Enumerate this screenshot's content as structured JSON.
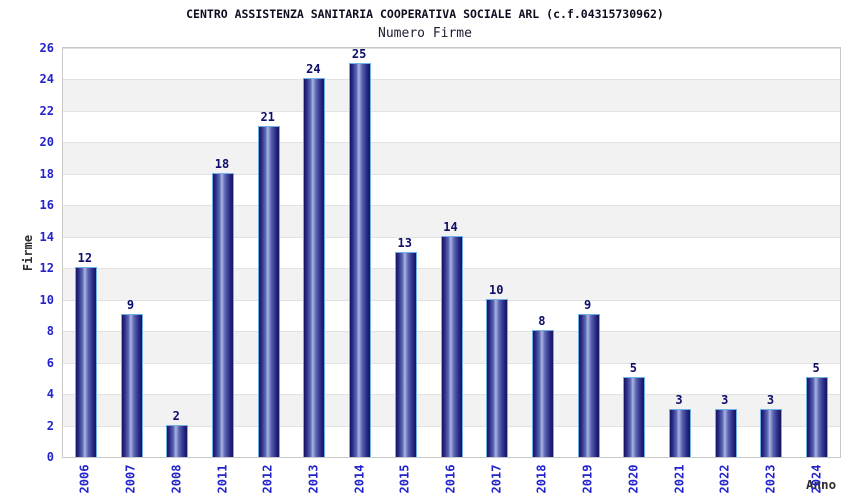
{
  "header": {
    "title": "CENTRO ASSISTENZA SANITARIA COOPERATIVA SOCIALE ARL (c.f.04315730962)",
    "subtitle": "Numero Firme"
  },
  "chart_data": {
    "type": "bar",
    "title": "CENTRO ASSISTENZA SANITARIA COOPERATIVA SOCIALE ARL (c.f.04315730962)",
    "subtitle": "Numero Firme",
    "categories": [
      "2006",
      "2007",
      "2008",
      "2011",
      "2012",
      "2013",
      "2014",
      "2015",
      "2016",
      "2017",
      "2018",
      "2019",
      "2020",
      "2021",
      "2022",
      "2023",
      "2024"
    ],
    "values": [
      12,
      9,
      2,
      18,
      21,
      24,
      25,
      13,
      14,
      10,
      8,
      9,
      5,
      3,
      3,
      3,
      5
    ],
    "xlabel": "Anno",
    "ylabel": "Firme",
    "ylim": [
      0,
      26
    ],
    "ytick_step": 2,
    "grid": "horizontal alternating bands",
    "legend": "none",
    "data_labels": true
  },
  "colors": {
    "tick_label": "#2323cb",
    "value_label": "#0d0d6b",
    "title": "#0d0d1f",
    "axis_title": "#2e2e2e",
    "plot_border": "#c9c9c9",
    "band_gray": "#f2f2f2",
    "band_white": "#ffffff",
    "band_line": "#e2e2e2",
    "bar_dark": "#14145e",
    "bar_mid1": "#2a2a85",
    "bar_mid2": "#5b66b2",
    "bar_highlight": "#aab4e2",
    "bar_border": "#70b2e8"
  }
}
